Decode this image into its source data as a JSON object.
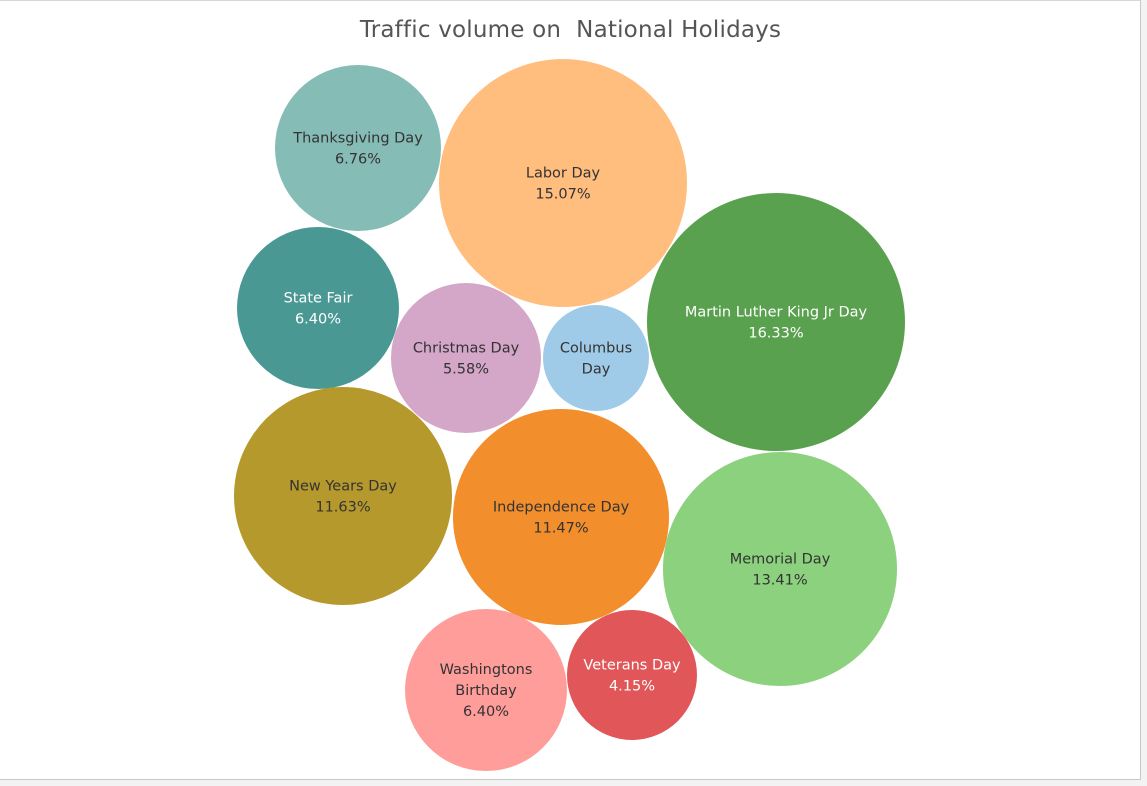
{
  "chart_data": {
    "type": "packed-bubble",
    "title": "Traffic volume on  National Holidays",
    "items": [
      {
        "name": "Thanksgiving Day",
        "label_lines": [
          "Thanksgiving Day"
        ],
        "pct": "6.76%",
        "value": 6.76,
        "color": "#86bcb6",
        "text_color": "#333333"
      },
      {
        "name": "Labor Day",
        "label_lines": [
          "Labor Day"
        ],
        "pct": "15.07%",
        "value": 15.07,
        "color": "#ffbe7d",
        "text_color": "#333333"
      },
      {
        "name": "State Fair",
        "label_lines": [
          "State Fair"
        ],
        "pct": "6.40%",
        "value": 6.4,
        "color": "#499894",
        "text_color": "#ffffff"
      },
      {
        "name": "Christmas Day",
        "label_lines": [
          "Christmas Day"
        ],
        "pct": "5.58%",
        "value": 5.58,
        "color": "#d4a6c8",
        "text_color": "#333333"
      },
      {
        "name": "Columbus Day",
        "label_lines": [
          "Columbus",
          "Day"
        ],
        "pct": "",
        "value": null,
        "color": "#a0cbe8",
        "text_color": "#333333"
      },
      {
        "name": "Martin Luther King Jr Day",
        "label_lines": [
          "Martin Luther King Jr Day"
        ],
        "pct": "16.33%",
        "value": 16.33,
        "color": "#59a14f",
        "text_color": "#ffffff"
      },
      {
        "name": "New Years Day",
        "label_lines": [
          "New Years Day"
        ],
        "pct": "11.63%",
        "value": 11.63,
        "color": "#b6992d",
        "text_color": "#333333"
      },
      {
        "name": "Independence Day",
        "label_lines": [
          "Independence Day"
        ],
        "pct": "11.47%",
        "value": 11.47,
        "color": "#f28e2b",
        "text_color": "#333333"
      },
      {
        "name": "Memorial Day",
        "label_lines": [
          "Memorial Day"
        ],
        "pct": "13.41%",
        "value": 13.41,
        "color": "#8cd17d",
        "text_color": "#333333"
      },
      {
        "name": "Washingtons Birthday",
        "label_lines": [
          "Washingtons",
          "Birthday"
        ],
        "pct": "6.40%",
        "value": 6.4,
        "color": "#ff9d9a",
        "text_color": "#333333"
      },
      {
        "name": "Veterans Day",
        "label_lines": [
          "Veterans Day"
        ],
        "pct": "4.15%",
        "value": 4.15,
        "color": "#e15759",
        "text_color": "#ffffff"
      }
    ]
  }
}
